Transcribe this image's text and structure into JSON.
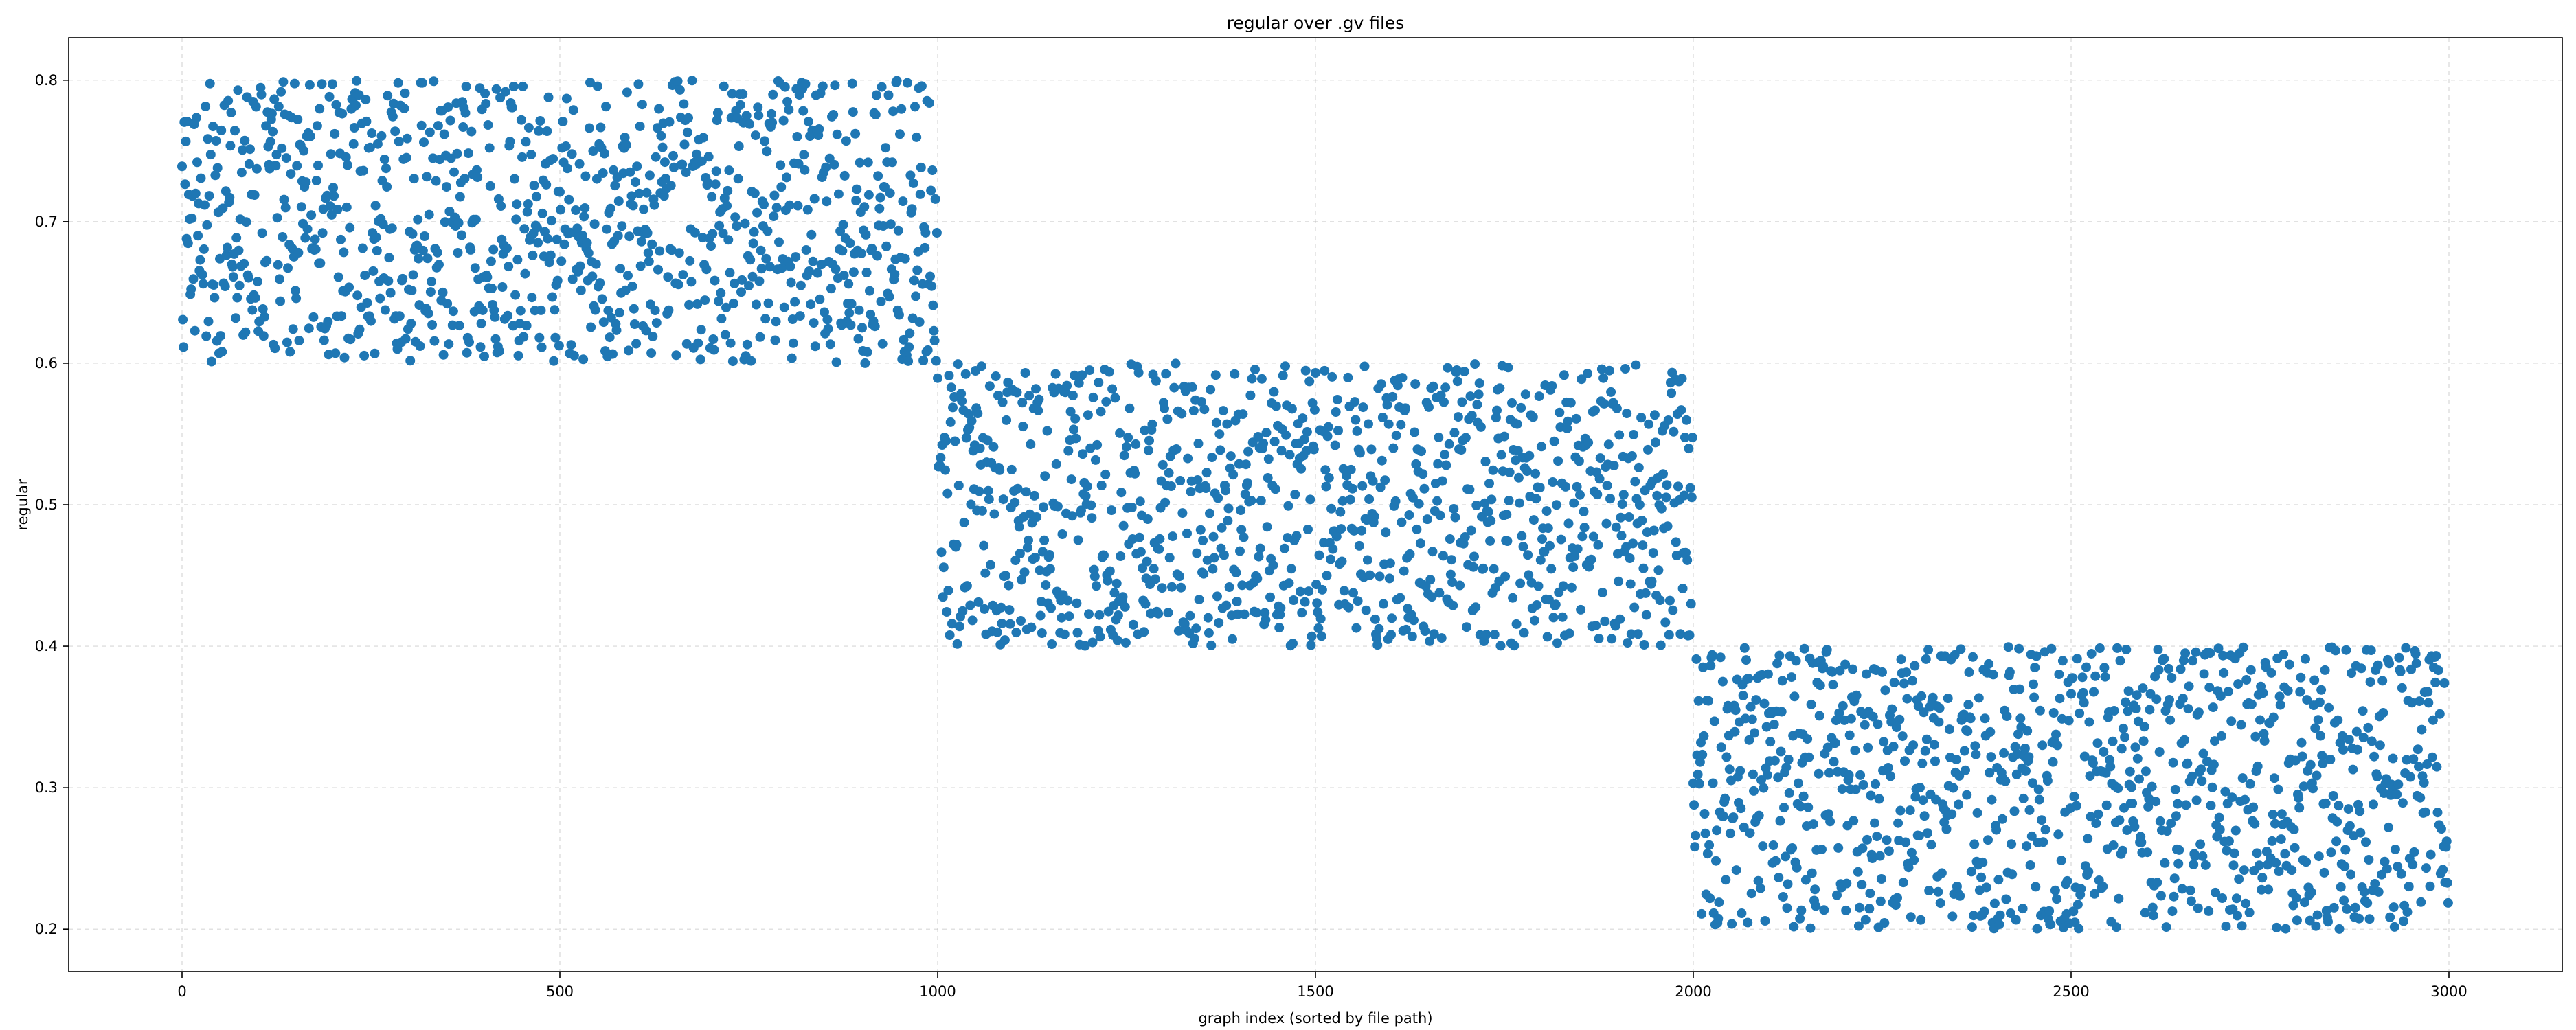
{
  "chart_data": {
    "type": "scatter",
    "title": "regular over .gv files",
    "xlabel": "graph index (sorted by file path)",
    "ylabel": "regular",
    "xlim": [
      -150,
      3150
    ],
    "ylim": [
      0.17,
      0.83
    ],
    "xticks": [
      0,
      500,
      1000,
      1500,
      2000,
      2500,
      3000
    ],
    "yticks": [
      0.2,
      0.3,
      0.4,
      0.5,
      0.6,
      0.7,
      0.8
    ],
    "grid": true,
    "marker_color": "#1f77b4",
    "series": [
      {
        "name": "",
        "points_description": "3000 points, uniformly scattered in three bands",
        "bands": [
          {
            "x_range": [
              0,
              999
            ],
            "y_range": [
              0.6,
              0.8
            ],
            "count": 1000
          },
          {
            "x_range": [
              1000,
              1999
            ],
            "y_range": [
              0.4,
              0.6
            ],
            "count": 1000
          },
          {
            "x_range": [
              2000,
              2999
            ],
            "y_range": [
              0.2,
              0.4
            ],
            "count": 1000
          }
        ]
      }
    ]
  }
}
